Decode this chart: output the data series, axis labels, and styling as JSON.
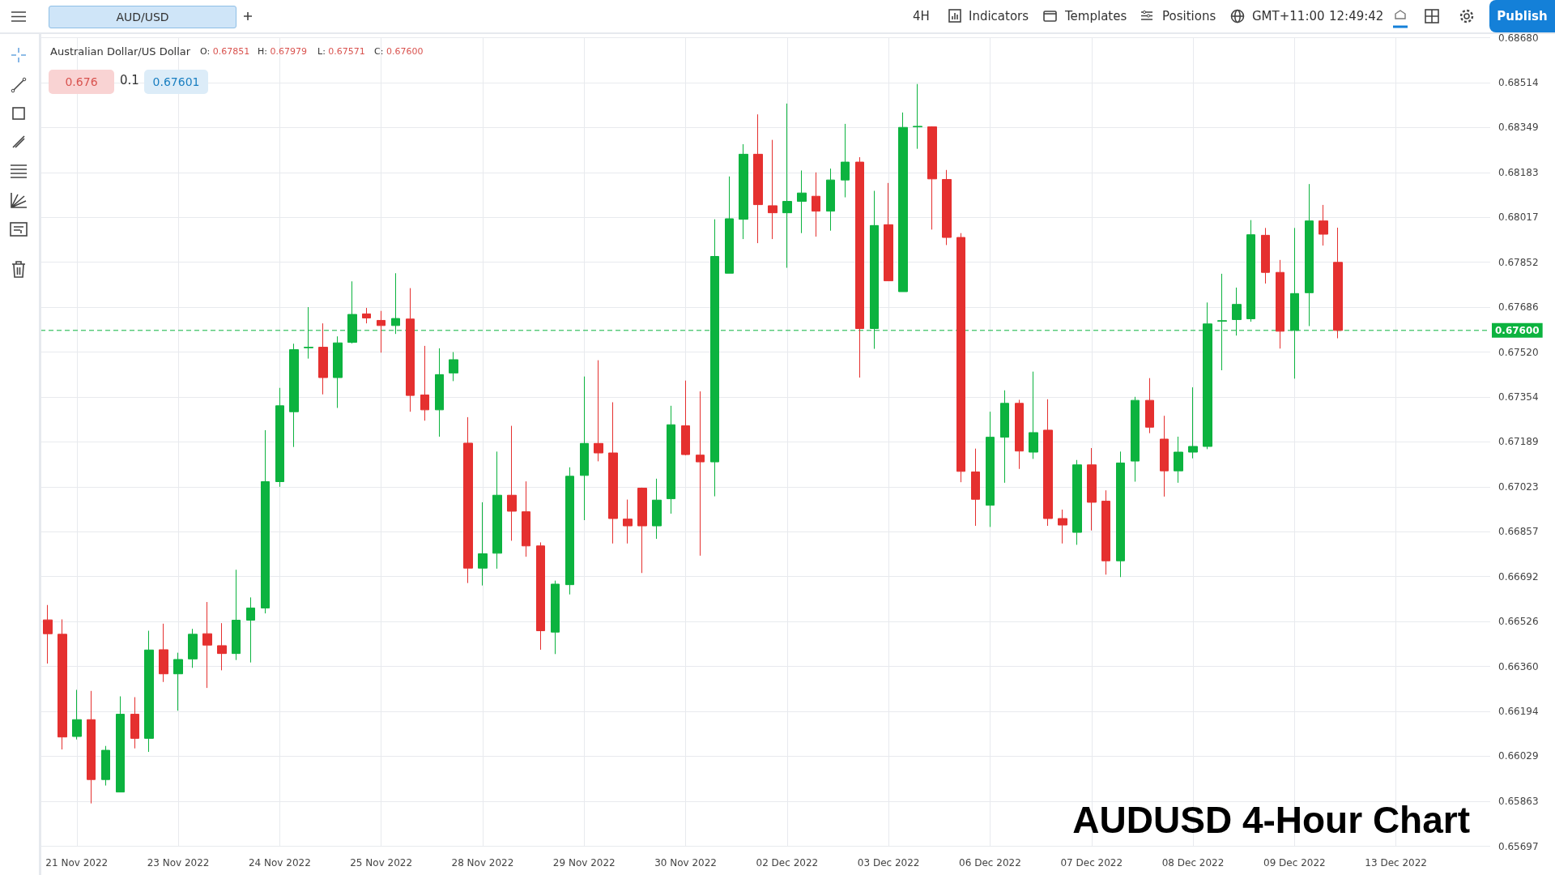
{
  "chart_data": {
    "type": "candlestick",
    "title": "AUDUSD 4-Hour Chart",
    "categories": [
      null,
      null,
      "21 Nov 2022",
      null,
      null,
      null,
      null,
      null,
      null,
      "23 Nov 2022",
      null,
      null,
      null,
      null,
      null,
      null,
      "24 Nov 2022",
      null,
      null,
      null,
      null,
      null,
      null,
      "25 Nov 2022",
      null,
      null,
      null,
      null,
      null,
      null,
      "28 Nov 2022",
      null,
      null,
      null,
      null,
      null,
      null,
      "29 Nov 2022",
      null,
      null,
      null,
      null,
      null,
      null,
      "30 Nov 2022",
      null,
      null,
      null,
      null,
      null,
      null,
      "02 Dec 2022",
      null,
      null,
      null,
      null,
      null,
      null,
      "03 Dec 2022",
      null,
      null,
      null,
      null,
      null,
      null,
      "06 Dec 2022",
      null,
      null,
      null,
      null,
      null,
      null,
      "07 Dec 2022",
      null,
      null,
      null,
      null,
      null,
      null,
      "08 Dec 2022",
      null,
      null,
      null,
      null,
      null,
      null,
      "09 Dec 2022",
      null,
      null,
      null,
      null,
      null,
      null,
      "13 Dec 2022",
      null,
      null,
      null,
      null,
      null,
      null
    ],
    "ohlc": [
      [
        0.66532,
        0.66587,
        0.66371,
        0.66481
      ],
      [
        0.66479,
        0.66534,
        0.66054,
        0.661
      ],
      [
        0.66102,
        0.66274,
        0.66091,
        0.66164
      ],
      [
        0.66164,
        0.6627,
        0.65855,
        0.65943
      ],
      [
        0.65943,
        0.66067,
        0.65921,
        0.66051
      ],
      [
        0.65897,
        0.6625,
        0.65897,
        0.66184
      ],
      [
        0.66184,
        0.66247,
        0.66058,
        0.66095
      ],
      [
        0.66095,
        0.66492,
        0.66045,
        0.66421
      ],
      [
        0.66422,
        0.66518,
        0.66303,
        0.66333
      ],
      [
        0.66333,
        0.66411,
        0.66197,
        0.66386
      ],
      [
        0.66388,
        0.66499,
        0.66355,
        0.66479
      ],
      [
        0.66481,
        0.66598,
        0.66281,
        0.66439
      ],
      [
        0.66437,
        0.6652,
        0.66346,
        0.66408
      ],
      [
        0.66408,
        0.66717,
        0.66384,
        0.66531
      ],
      [
        0.66531,
        0.66615,
        0.66375,
        0.66576
      ],
      [
        0.66576,
        0.67232,
        0.66556,
        0.67042
      ],
      [
        0.67042,
        0.67388,
        0.67023,
        0.67322
      ],
      [
        0.673,
        0.67551,
        0.6717,
        0.67529
      ],
      [
        0.67536,
        0.67686,
        0.67496,
        0.67538
      ],
      [
        0.67538,
        0.67626,
        0.67364,
        0.67426
      ],
      [
        0.67426,
        0.67578,
        0.67314,
        0.67554
      ],
      [
        0.67556,
        0.67781,
        0.67552,
        0.67659
      ],
      [
        0.67661,
        0.67683,
        0.67626,
        0.67646
      ],
      [
        0.67637,
        0.67672,
        0.67518,
        0.67618
      ],
      [
        0.67618,
        0.67811,
        0.67587,
        0.67644
      ],
      [
        0.67642,
        0.67756,
        0.673,
        0.6736
      ],
      [
        0.67362,
        0.67543,
        0.67267,
        0.67307
      ],
      [
        0.67307,
        0.67534,
        0.67208,
        0.67437
      ],
      [
        0.67443,
        0.6752,
        0.67413,
        0.67492
      ],
      [
        0.67184,
        0.6728,
        0.66668,
        0.66723
      ],
      [
        0.66723,
        0.66966,
        0.66659,
        0.66776
      ],
      [
        0.66778,
        0.67153,
        0.66721,
        0.66992
      ],
      [
        0.66992,
        0.67248,
        0.66824,
        0.66933
      ],
      [
        0.66931,
        0.67043,
        0.66765,
        0.66805
      ],
      [
        0.66805,
        0.66818,
        0.66422,
        0.66492
      ],
      [
        0.66487,
        0.66677,
        0.66406,
        0.66664
      ],
      [
        0.66662,
        0.67095,
        0.66626,
        0.67062
      ],
      [
        0.67065,
        0.6743,
        0.669,
        0.67183
      ],
      [
        0.67183,
        0.6749,
        0.67117,
        0.67148
      ],
      [
        0.67148,
        0.67335,
        0.66814,
        0.66906
      ],
      [
        0.66904,
        0.66976,
        0.66814,
        0.66879
      ],
      [
        0.67018,
        0.6702,
        0.66705,
        0.66879
      ],
      [
        0.66879,
        0.67053,
        0.66831,
        0.66974
      ],
      [
        0.66979,
        0.67322,
        0.66924,
        0.67252
      ],
      [
        0.67248,
        0.67415,
        0.67139,
        0.67142
      ],
      [
        0.6714,
        0.67375,
        0.66769,
        0.67115
      ],
      [
        0.67115,
        0.6801,
        0.66988,
        0.67873
      ],
      [
        0.67811,
        0.68168,
        0.67811,
        0.68012
      ],
      [
        0.6801,
        0.68287,
        0.67937,
        0.6825
      ],
      [
        0.6825,
        0.68397,
        0.67922,
        0.68064
      ],
      [
        0.6806,
        0.68303,
        0.67937,
        0.68034
      ],
      [
        0.68034,
        0.68437,
        0.67831,
        0.68076
      ],
      [
        0.68076,
        0.6819,
        0.67959,
        0.68107
      ],
      [
        0.68095,
        0.68183,
        0.67946,
        0.6804
      ],
      [
        0.6804,
        0.68197,
        0.67968,
        0.68155
      ],
      [
        0.68155,
        0.68362,
        0.68091,
        0.68221
      ],
      [
        0.68221,
        0.68239,
        0.67426,
        0.67607
      ],
      [
        0.67607,
        0.68115,
        0.67532,
        0.67987
      ],
      [
        0.6799,
        0.68144,
        0.67783,
        0.67783
      ],
      [
        0.67743,
        0.68404,
        0.67743,
        0.68349
      ],
      [
        0.68351,
        0.68509,
        0.6827,
        0.68353
      ],
      [
        0.68351,
        0.68353,
        0.67972,
        0.68159
      ],
      [
        0.68157,
        0.68192,
        0.67915,
        0.67943
      ],
      [
        0.67943,
        0.67959,
        0.6704,
        0.6708
      ],
      [
        0.67078,
        0.67164,
        0.66879,
        0.66977
      ],
      [
        0.66955,
        0.673,
        0.66875,
        0.67206
      ],
      [
        0.67206,
        0.67379,
        0.67038,
        0.67331
      ],
      [
        0.67331,
        0.67344,
        0.67089,
        0.67155
      ],
      [
        0.67151,
        0.67448,
        0.67126,
        0.67223
      ],
      [
        0.67232,
        0.67346,
        0.66879,
        0.66906
      ],
      [
        0.66906,
        0.66939,
        0.66814,
        0.66882
      ],
      [
        0.66855,
        0.67122,
        0.66809,
        0.67104
      ],
      [
        0.67104,
        0.67166,
        0.66862,
        0.66966
      ],
      [
        0.6697,
        0.6701,
        0.66699,
        0.6675
      ],
      [
        0.6675,
        0.67153,
        0.6669,
        0.67111
      ],
      [
        0.67118,
        0.67355,
        0.67042,
        0.67342
      ],
      [
        0.67342,
        0.67424,
        0.67221,
        0.67243
      ],
      [
        0.67199,
        0.67285,
        0.66987,
        0.67082
      ],
      [
        0.67082,
        0.67208,
        0.67038,
        0.67151
      ],
      [
        0.67151,
        0.6739,
        0.67128,
        0.67172
      ],
      [
        0.67172,
        0.67703,
        0.67162,
        0.67624
      ],
      [
        0.67634,
        0.67809,
        0.67453,
        0.67636
      ],
      [
        0.6764,
        0.67758,
        0.67581,
        0.67696
      ],
      [
        0.67643,
        0.68007,
        0.67632,
        0.67953
      ],
      [
        0.67951,
        0.67978,
        0.67773,
        0.67814
      ],
      [
        0.67814,
        0.6786,
        0.67533,
        0.67597
      ],
      [
        0.676,
        0.67978,
        0.67422,
        0.67736
      ],
      [
        0.67739,
        0.6814,
        0.67616,
        0.68004
      ],
      [
        0.68004,
        0.68063,
        0.67913,
        0.67955
      ],
      [
        0.67851,
        0.67979,
        0.67571,
        0.676
      ],
      null,
      null,
      null,
      null,
      null,
      null,
      null,
      null,
      null,
      null
    ],
    "colors": [
      "#e5302f",
      "#e5302f",
      "#0cb33f",
      "#e5302f",
      "#0cb33f",
      "#0cb33f",
      "#e5302f",
      "#0cb33f",
      "#e5302f",
      "#0cb33f",
      "#0cb33f",
      "#e5302f",
      "#e5302f",
      "#0cb33f",
      "#0cb33f",
      "#0cb33f",
      "#0cb33f",
      "#0cb33f",
      "#0cb33f",
      "#e5302f",
      "#0cb33f",
      "#0cb33f",
      "#e5302f",
      "#e5302f",
      "#0cb33f",
      "#e5302f",
      "#e5302f",
      "#0cb33f",
      "#0cb33f",
      "#e5302f",
      "#0cb33f",
      "#0cb33f",
      "#e5302f",
      "#e5302f",
      "#e5302f",
      "#0cb33f",
      "#0cb33f",
      "#0cb33f",
      "#e5302f",
      "#e5302f",
      "#e5302f",
      "#e5302f",
      "#0cb33f",
      "#0cb33f",
      "#e5302f",
      "#e5302f",
      "#0cb33f",
      "#0cb33f",
      "#0cb33f",
      "#e5302f",
      "#e5302f",
      "#0cb33f",
      "#0cb33f",
      "#e5302f",
      "#0cb33f",
      "#0cb33f",
      "#e5302f",
      "#0cb33f",
      "#e5302f",
      "#0cb33f",
      "#0cb33f",
      "#e5302f",
      "#e5302f",
      "#e5302f",
      "#e5302f",
      "#0cb33f",
      "#0cb33f",
      "#e5302f",
      "#0cb33f",
      "#e5302f",
      "#e5302f",
      "#0cb33f",
      "#e5302f",
      "#e5302f",
      "#0cb33f",
      "#0cb33f",
      "#e5302f",
      "#e5302f",
      "#0cb33f",
      "#0cb33f",
      "#0cb33f",
      "#0cb33f",
      "#0cb33f",
      "#0cb33f",
      "#e5302f",
      "#e5302f",
      "#0cb33f",
      "#0cb33f",
      "#e5302f",
      "#e5302f",
      null,
      null,
      null,
      null,
      null,
      null,
      null,
      null,
      null,
      null
    ],
    "ylim": [
      0.65697,
      0.6868
    ],
    "yticks": [
      0.65697,
      0.65863,
      0.66029,
      0.66194,
      {
        "value": 0.6636,
        "label": "0.66360"
      },
      0.66526,
      0.66692,
      0.66857,
      0.67023,
      0.67189,
      0.67354,
      {
        "value": 0.6752,
        "label": "0.67520"
      },
      0.67686,
      0.67852,
      0.68017,
      0.68183,
      0.68349,
      0.68514,
      {
        "value": 0.6868,
        "label": "0.68680"
      }
    ],
    "grid": true,
    "ref_lines": [
      {
        "axis": "y",
        "value": 0.676,
        "label": "0.67600",
        "color": "#0cb33f",
        "line_style": "dashed"
      }
    ],
    "annotations": [
      "AUD/USD",
      "4H",
      "Indicators",
      "Templates",
      "Positions",
      "GMT+11:00",
      "12:49:42",
      "Publish",
      "Australian Dollar/US Dollar",
      "O: 0.67851",
      "H: 0.67979",
      "L: 0.67571",
      "C: 0.67600",
      "0.676",
      "0.1",
      "0.67601"
    ]
  }
}
